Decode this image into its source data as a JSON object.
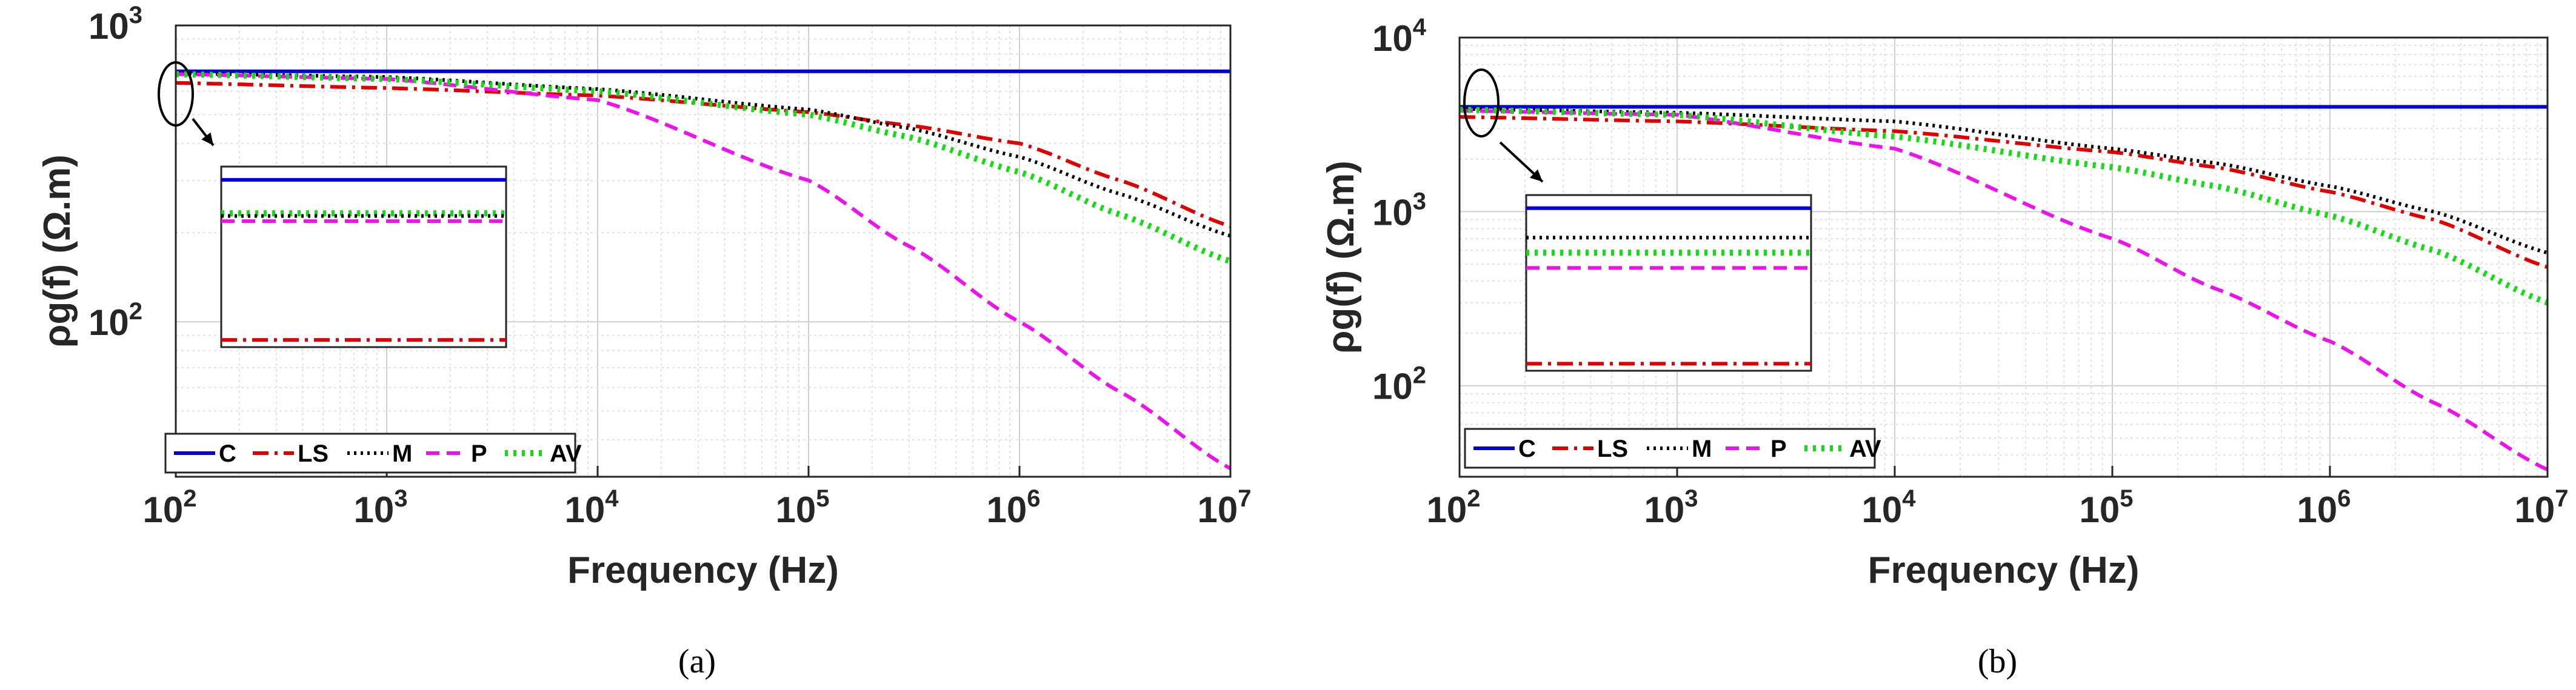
{
  "figure": {
    "panels": [
      "(a)",
      "(b)"
    ]
  },
  "chart_data": [
    {
      "type": "line",
      "panel_label": "(a)",
      "xscale": "log",
      "yscale": "log",
      "xlabel": "Frequency (Hz)",
      "ylabel": "ρg(f) (Ω.m)",
      "xlim": [
        100,
        10000000
      ],
      "ylim": [
        30,
        1000
      ],
      "xticks": [
        {
          "base": "10",
          "exp": "2"
        },
        {
          "base": "10",
          "exp": "3"
        },
        {
          "base": "10",
          "exp": "4"
        },
        {
          "base": "10",
          "exp": "5"
        },
        {
          "base": "10",
          "exp": "6"
        },
        {
          "base": "10",
          "exp": "7"
        }
      ],
      "yticks": [
        {
          "value": 100,
          "base": "10",
          "exp": "2"
        },
        {
          "value": 1000,
          "base": "10",
          "exp": "3"
        }
      ],
      "grid": true,
      "legend_position": "bottom-left",
      "x": [
        100,
        1000,
        10000,
        100000,
        300000,
        1000000,
        3000000,
        10000000
      ],
      "series": [
        {
          "name": "C",
          "color": "#0000dd",
          "dash": "solid",
          "values": [
            700,
            700,
            700,
            700,
            700,
            700,
            700,
            700
          ]
        },
        {
          "name": "LS",
          "color": "#e00000",
          "dash": "dashdot",
          "values": [
            640,
            615,
            580,
            510,
            460,
            400,
            300,
            210
          ]
        },
        {
          "name": "M",
          "color": "#000000",
          "dash": "dotted",
          "values": [
            690,
            670,
            610,
            520,
            450,
            360,
            270,
            195
          ]
        },
        {
          "name": "P",
          "color": "#ee11ee",
          "dash": "dashed",
          "values": [
            685,
            660,
            560,
            300,
            180,
            100,
            58,
            32
          ]
        },
        {
          "name": "AV",
          "color": "#11dd11",
          "dash": "dotted-thick",
          "values": [
            685,
            660,
            600,
            500,
            420,
            320,
            230,
            160
          ]
        }
      ],
      "inset_levels": {
        "C": 700,
        "AV": 687,
        "M": 686,
        "P": 684,
        "LS": 640
      }
    },
    {
      "type": "line",
      "panel_label": "(b)",
      "xscale": "log",
      "yscale": "log",
      "xlabel": "Frequency (Hz)",
      "ylabel": "ρg(f) (Ω.m)",
      "xlim": [
        100,
        10000000
      ],
      "ylim": [
        30,
        10000
      ],
      "xticks": [
        {
          "base": "10",
          "exp": "2"
        },
        {
          "base": "10",
          "exp": "3"
        },
        {
          "base": "10",
          "exp": "4"
        },
        {
          "base": "10",
          "exp": "5"
        },
        {
          "base": "10",
          "exp": "6"
        },
        {
          "base": "10",
          "exp": "7"
        }
      ],
      "yticks": [
        {
          "value": 100,
          "base": "10",
          "exp": "2"
        },
        {
          "value": 1000,
          "base": "10",
          "exp": "3"
        },
        {
          "value": 10000,
          "base": "10",
          "exp": "4"
        }
      ],
      "grid": true,
      "legend_position": "bottom-left",
      "x": [
        100,
        1000,
        10000,
        100000,
        300000,
        1000000,
        3000000,
        10000000
      ],
      "series": [
        {
          "name": "C",
          "color": "#0000dd",
          "dash": "solid",
          "values": [
            4000,
            4000,
            4000,
            4000,
            4000,
            4000,
            4000,
            4000
          ]
        },
        {
          "name": "LS",
          "color": "#e00000",
          "dash": "dashdot",
          "values": [
            3500,
            3300,
            2900,
            2200,
            1800,
            1300,
            900,
            480
          ]
        },
        {
          "name": "M",
          "color": "#000000",
          "dash": "dotted",
          "values": [
            3900,
            3700,
            3300,
            2300,
            1900,
            1400,
            1000,
            580
          ]
        },
        {
          "name": "P",
          "color": "#ee11ee",
          "dash": "dashed",
          "values": [
            3800,
            3600,
            2300,
            700,
            360,
            180,
            80,
            33
          ]
        },
        {
          "name": "AV",
          "color": "#11dd11",
          "dash": "dotted-thick",
          "values": [
            3850,
            3600,
            2700,
            1800,
            1400,
            950,
            600,
            300
          ]
        }
      ],
      "inset_levels": {
        "C": 4000,
        "M": 3900,
        "AV": 3850,
        "P": 3800,
        "LS": 3500
      }
    }
  ]
}
